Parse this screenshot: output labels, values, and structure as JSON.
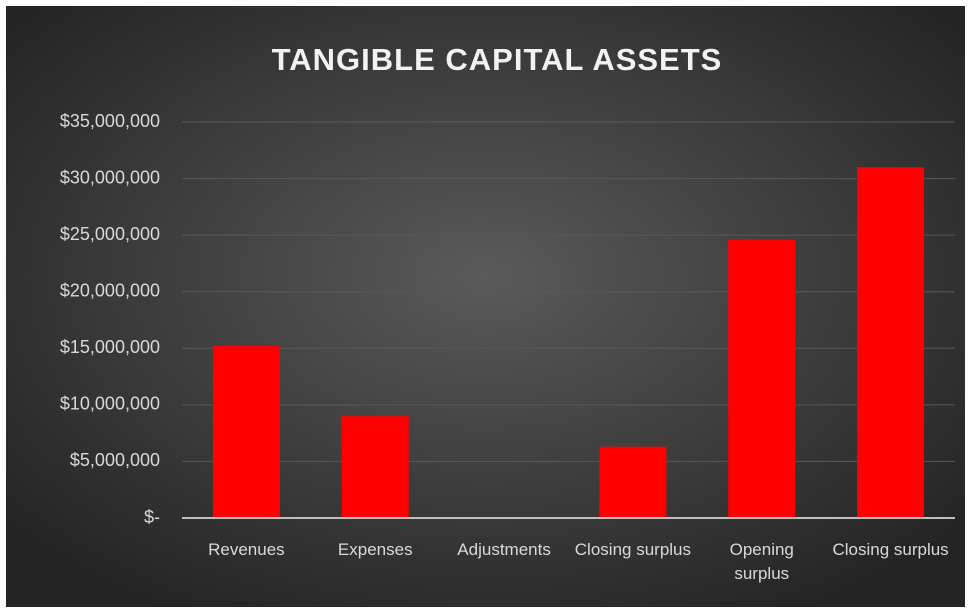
{
  "chart_data": {
    "type": "bar",
    "title": "TANGIBLE CAPITAL ASSETS",
    "categories": [
      "Revenues",
      "Expenses",
      "Adjustments",
      "Closing surplus",
      "Opening surplus",
      "Closing surplus"
    ],
    "values": [
      15200000,
      9000000,
      0,
      6300000,
      24600000,
      31000000
    ],
    "color": "#ff0000",
    "ylim": [
      0,
      35000000
    ],
    "yticks": [
      {
        "value": 0,
        "label": "$-"
      },
      {
        "value": 5000000,
        "label": "$5,000,000"
      },
      {
        "value": 10000000,
        "label": "$10,000,000"
      },
      {
        "value": 15000000,
        "label": "$15,000,000"
      },
      {
        "value": 20000000,
        "label": "$20,000,000"
      },
      {
        "value": 25000000,
        "label": "$25,000,000"
      },
      {
        "value": 30000000,
        "label": "$30,000,000"
      },
      {
        "value": 35000000,
        "label": "$35,000,000"
      }
    ],
    "grid": true
  }
}
